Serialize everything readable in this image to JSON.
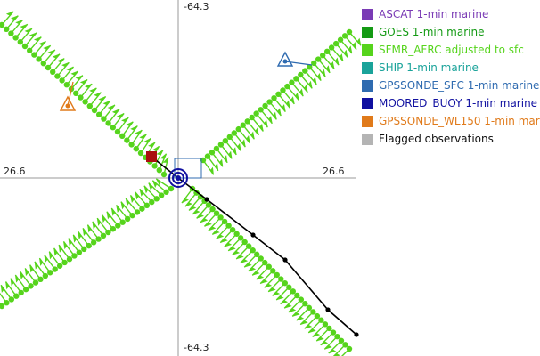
{
  "chart_data": {
    "type": "scatter",
    "title": "",
    "xlabel": "",
    "ylabel": "",
    "axis_tick_labels": {
      "top": "-64.3",
      "bottom": "-64.3",
      "left": "26.6",
      "right": "26.6"
    },
    "x_range": [
      -100,
      100
    ],
    "y_range": [
      -100,
      100
    ],
    "grid": "center crosshair",
    "legend_position": "right",
    "series": [
      {
        "name": "ASCAT 1-min marine",
        "color": "#7a3bb5"
      },
      {
        "name": "GOES 1-min marine",
        "color": "#149a14"
      },
      {
        "name": "SFMR_AFRC adjusted to sfc",
        "color": "#56d41c"
      },
      {
        "name": "SHIP 1-min marine",
        "color": "#1aa39a"
      },
      {
        "name": "GPSSONDE_SFC 1-min marine",
        "color": "#2f6bb0"
      },
      {
        "name": "MOORED_BUOY 1-min marine",
        "color": "#1010a0"
      },
      {
        "name": "GPSSONDE_WL150 1-min mar",
        "color": "#e07a1a"
      },
      {
        "name": "Flagged observations",
        "color": "#b4b4b4"
      }
    ],
    "flight_legs": [
      {
        "name": "NW leg",
        "start": [
          -99,
          86
        ],
        "end": [
          -8,
          2
        ],
        "count": 36
      },
      {
        "name": "NE leg",
        "start": [
          14,
          10
        ],
        "end": [
          96,
          82
        ],
        "count": 34
      },
      {
        "name": "SW leg",
        "start": [
          -4,
          -6
        ],
        "end": [
          -99,
          -72
        ],
        "count": 36
      },
      {
        "name": "SE leg",
        "start": [
          8,
          -6
        ],
        "end": [
          96,
          -96
        ],
        "count": 40
      }
    ],
    "track": [
      [
        -15,
        12
      ],
      [
        0,
        0
      ],
      [
        16,
        -12
      ],
      [
        42,
        -32
      ],
      [
        60,
        -46
      ],
      [
        84,
        -74
      ],
      [
        100,
        -88
      ]
    ],
    "center": [
      0,
      0
    ],
    "moored_buoy_marker": [
      0,
      0
    ],
    "flagged_marker": [
      -15,
      12
    ],
    "gpssonde_sfc_marker": [
      60,
      66
    ],
    "gpssonde_wl150_marker": [
      -62,
      41
    ]
  }
}
